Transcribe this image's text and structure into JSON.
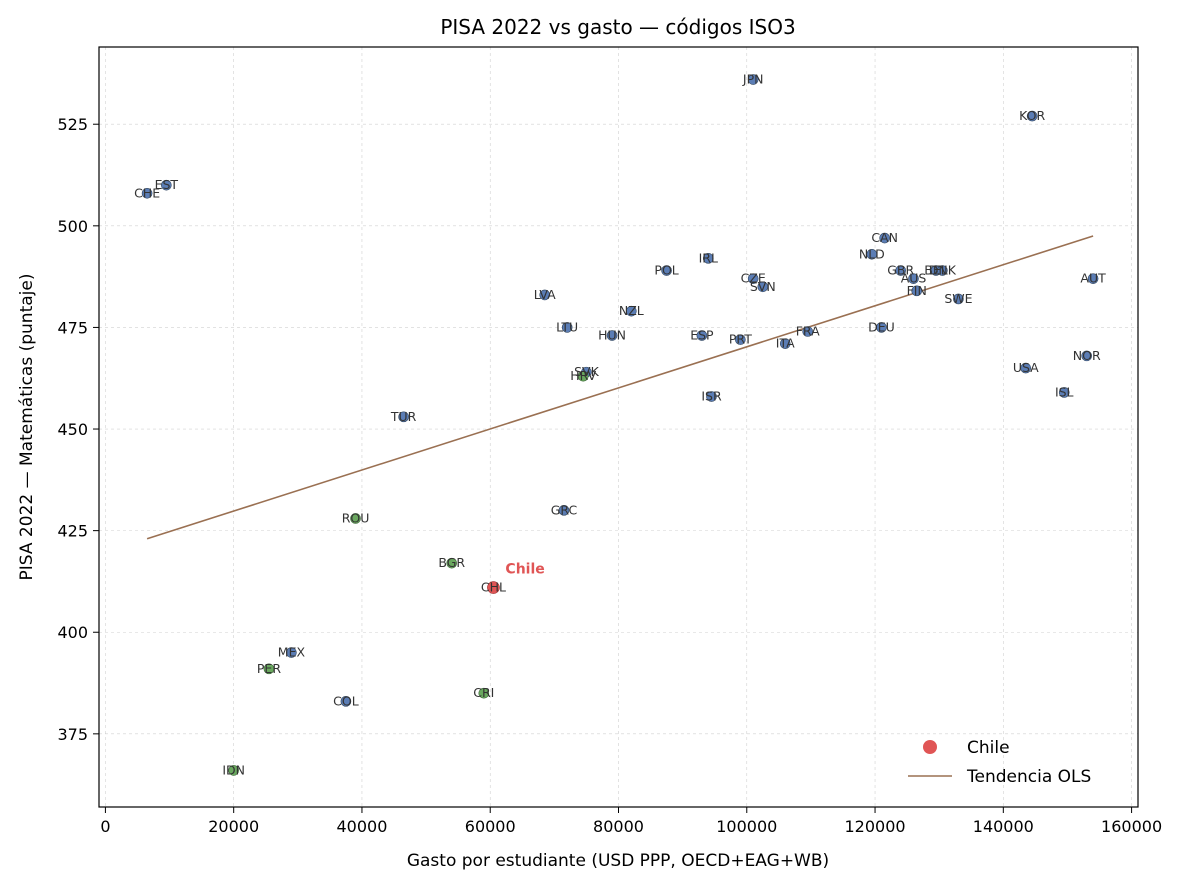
{
  "chart_data": {
    "type": "scatter",
    "title": "PISA 2022 vs gasto — códigos ISO3",
    "xlabel": "Gasto por estudiante (USD PPP, OECD+EAG+WB)",
    "ylabel": "PISA 2022 — Matemáticas (puntaje)",
    "xlim": [
      -1000,
      161000
    ],
    "ylim": [
      357,
      544
    ],
    "xticks": [
      0,
      20000,
      40000,
      60000,
      80000,
      100000,
      120000,
      140000,
      160000
    ],
    "yticks": [
      375,
      400,
      425,
      450,
      475,
      500,
      525
    ],
    "grid": true,
    "legend_position": "bottom-right",
    "legend": [
      {
        "label": "Chile",
        "kind": "marker",
        "color": "#e05555"
      },
      {
        "label": "Tendencia OLS",
        "kind": "line",
        "color": "#9a7052"
      }
    ],
    "highlight_label": "Chile",
    "colors": {
      "oecd": "#5b7db5",
      "other": "#6aa85f",
      "chile": "#e05555",
      "trend": "#9a7052"
    },
    "trend": {
      "x": [
        6500,
        154000
      ],
      "y": [
        423,
        497.5
      ]
    },
    "points": [
      {
        "code": "JPN",
        "x": 101000,
        "y": 536,
        "group": "oecd"
      },
      {
        "code": "KOR",
        "x": 144500,
        "y": 527,
        "group": "oecd"
      },
      {
        "code": "EST",
        "x": 9500,
        "y": 510,
        "group": "oecd"
      },
      {
        "code": "CHE",
        "x": 6500,
        "y": 508,
        "group": "oecd"
      },
      {
        "code": "CAN",
        "x": 121500,
        "y": 497,
        "group": "oecd"
      },
      {
        "code": "NLD",
        "x": 119500,
        "y": 493,
        "group": "oecd"
      },
      {
        "code": "IRL",
        "x": 94000,
        "y": 492,
        "group": "oecd"
      },
      {
        "code": "POL",
        "x": 87500,
        "y": 489,
        "group": "oecd"
      },
      {
        "code": "GBR",
        "x": 124000,
        "y": 489,
        "group": "oecd"
      },
      {
        "code": "BEL",
        "x": 129500,
        "y": 489,
        "group": "oecd"
      },
      {
        "code": "DNK",
        "x": 130500,
        "y": 489,
        "group": "oecd"
      },
      {
        "code": "CZE",
        "x": 101000,
        "y": 487,
        "group": "oecd"
      },
      {
        "code": "AUS",
        "x": 126000,
        "y": 487,
        "group": "oecd"
      },
      {
        "code": "AUT",
        "x": 154000,
        "y": 487,
        "group": "oecd"
      },
      {
        "code": "SVN",
        "x": 102500,
        "y": 485,
        "group": "oecd"
      },
      {
        "code": "FIN",
        "x": 126500,
        "y": 484,
        "group": "oecd"
      },
      {
        "code": "LVA",
        "x": 68500,
        "y": 483,
        "group": "oecd"
      },
      {
        "code": "SWE",
        "x": 133000,
        "y": 482,
        "group": "oecd"
      },
      {
        "code": "NZL",
        "x": 82000,
        "y": 479,
        "group": "oecd"
      },
      {
        "code": "LTU",
        "x": 72000,
        "y": 475,
        "group": "oecd"
      },
      {
        "code": "DEU",
        "x": 121000,
        "y": 475,
        "group": "oecd"
      },
      {
        "code": "FRA",
        "x": 109500,
        "y": 474,
        "group": "oecd"
      },
      {
        "code": "ESP",
        "x": 93000,
        "y": 473,
        "group": "oecd"
      },
      {
        "code": "HUN",
        "x": 79000,
        "y": 473,
        "group": "oecd"
      },
      {
        "code": "PRT",
        "x": 99000,
        "y": 472,
        "group": "oecd"
      },
      {
        "code": "ITA",
        "x": 106000,
        "y": 471,
        "group": "oecd"
      },
      {
        "code": "NOR",
        "x": 153000,
        "y": 468,
        "group": "oecd"
      },
      {
        "code": "USA",
        "x": 143500,
        "y": 465,
        "group": "oecd"
      },
      {
        "code": "SVK",
        "x": 75000,
        "y": 464,
        "group": "oecd"
      },
      {
        "code": "HRV",
        "x": 74500,
        "y": 463,
        "group": "other"
      },
      {
        "code": "ISL",
        "x": 149500,
        "y": 459,
        "group": "oecd"
      },
      {
        "code": "ISR",
        "x": 94500,
        "y": 458,
        "group": "oecd"
      },
      {
        "code": "TUR",
        "x": 46500,
        "y": 453,
        "group": "oecd"
      },
      {
        "code": "GRC",
        "x": 71500,
        "y": 430,
        "group": "oecd"
      },
      {
        "code": "ROU",
        "x": 39000,
        "y": 428,
        "group": "other"
      },
      {
        "code": "BGR",
        "x": 54000,
        "y": 417,
        "group": "other"
      },
      {
        "code": "CHL",
        "x": 60500,
        "y": 411,
        "group": "chile"
      },
      {
        "code": "MEX",
        "x": 29000,
        "y": 395,
        "group": "oecd"
      },
      {
        "code": "PER",
        "x": 25500,
        "y": 391,
        "group": "other"
      },
      {
        "code": "CRI",
        "x": 59000,
        "y": 385,
        "group": "other"
      },
      {
        "code": "COL",
        "x": 37500,
        "y": 383,
        "group": "oecd"
      },
      {
        "code": "IDN",
        "x": 20000,
        "y": 366,
        "group": "other"
      }
    ]
  }
}
